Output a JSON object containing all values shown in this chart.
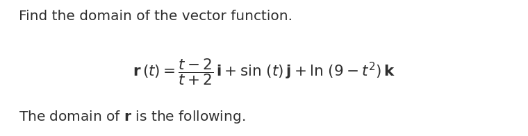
{
  "line1": "Find the domain of the vector function.",
  "line2": "$\\mathbf{r}\\,(t) = \\dfrac{t-2}{t+2}\\,\\mathbf{i} + \\sin\\,(t)\\,\\mathbf{j} + \\ln\\,(9 - t^2)\\,\\mathbf{k}$",
  "line3_pre": "The domain of ",
  "line3_bold": "r",
  "line3_post": " is the following.",
  "bg_color": "#ffffff",
  "text_color": "#2e2e2e",
  "font_size_line1": 14.5,
  "font_size_line2": 15.5,
  "font_size_line3": 14.5,
  "fig_width": 7.6,
  "fig_height": 1.96,
  "dpi": 100
}
